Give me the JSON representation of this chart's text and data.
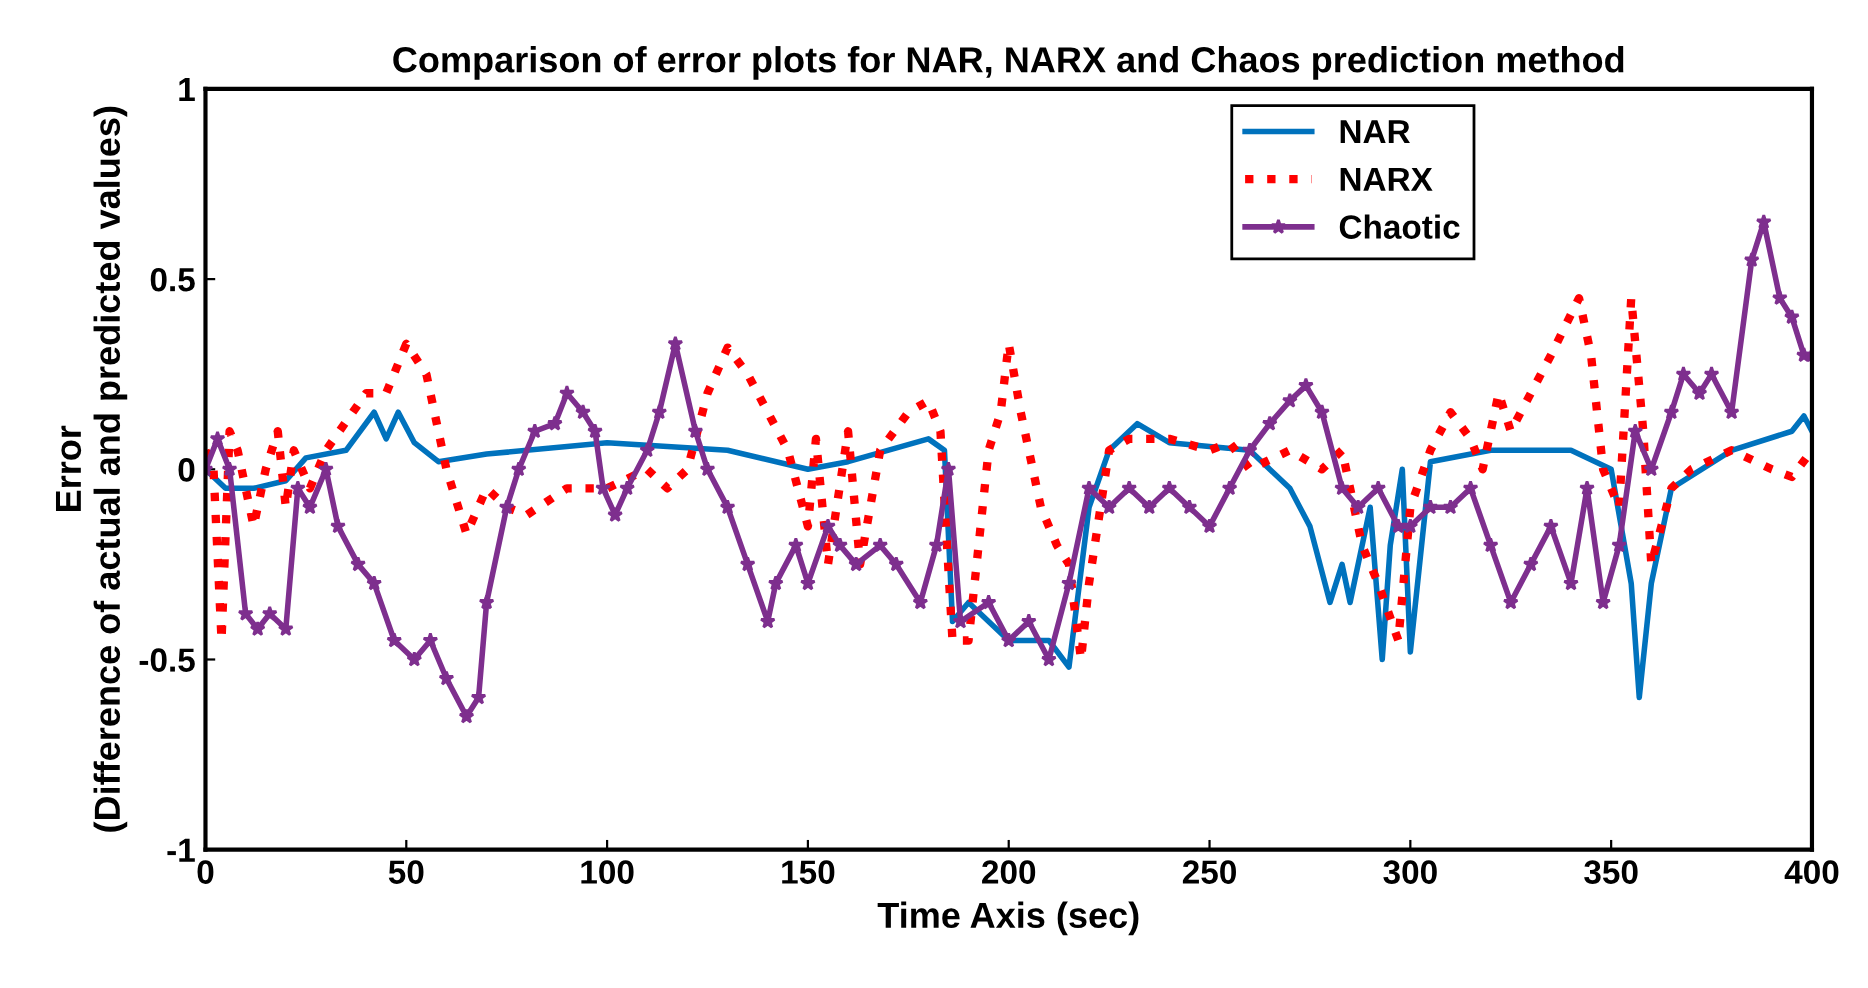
{
  "chart_data": {
    "type": "line",
    "title": "Comparison of error plots for NAR, NARX and Chaos prediction method",
    "xlabel": "Time Axis (sec)",
    "ylabel": "Error\n(Difference of actual and predicted values)",
    "xlim": [
      0,
      400
    ],
    "ylim": [
      -1,
      1
    ],
    "xticks": [
      0,
      50,
      100,
      150,
      200,
      250,
      300,
      350,
      400
    ],
    "yticks": [
      -1,
      -0.5,
      0,
      0.5,
      1
    ],
    "grid": false,
    "legend": "top right",
    "series": [
      {
        "name": "NAR",
        "color": "#0072bd",
        "line_style": "solid",
        "marker": "none",
        "x": [
          0,
          5,
          12,
          20,
          25,
          35,
          42,
          45,
          48,
          52,
          58,
          70,
          100,
          130,
          150,
          160,
          180,
          184,
          186,
          190,
          200,
          210,
          215,
          220,
          225,
          232,
          240,
          260,
          270,
          275,
          280,
          283,
          285,
          290,
          293,
          295,
          298,
          300,
          305,
          320,
          340,
          350,
          355,
          357,
          360,
          365,
          380,
          395,
          398,
          400
        ],
        "values": [
          0,
          -0.05,
          -0.05,
          -0.03,
          0.03,
          0.05,
          0.15,
          0.08,
          0.15,
          0.07,
          0.02,
          0.04,
          0.07,
          0.05,
          0.0,
          0.02,
          0.08,
          0.05,
          -0.4,
          -0.35,
          -0.45,
          -0.45,
          -0.52,
          -0.1,
          0.05,
          0.12,
          0.07,
          0.05,
          -0.05,
          -0.15,
          -0.35,
          -0.25,
          -0.35,
          -0.1,
          -0.5,
          -0.2,
          0.0,
          -0.48,
          0.02,
          0.05,
          0.05,
          0.0,
          -0.3,
          -0.6,
          -0.3,
          -0.05,
          0.05,
          0.1,
          0.14,
          0.1
        ]
      },
      {
        "name": "NARX",
        "color": "#ff0000",
        "line_style": "dotted",
        "marker": "none",
        "x": [
          0,
          2,
          4,
          6,
          8,
          12,
          15,
          18,
          20,
          22,
          26,
          30,
          40,
          45,
          50,
          55,
          60,
          65,
          70,
          75,
          80,
          90,
          100,
          110,
          115,
          120,
          125,
          130,
          135,
          140,
          145,
          150,
          152,
          155,
          160,
          163,
          168,
          175,
          180,
          183,
          186,
          190,
          195,
          198,
          200,
          203,
          208,
          212,
          215,
          218,
          220,
          225,
          230,
          240,
          250,
          255,
          260,
          270,
          278,
          283,
          288,
          292,
          297,
          300,
          305,
          310,
          315,
          318,
          322,
          325,
          330,
          335,
          342,
          345,
          348,
          352,
          355,
          358,
          360,
          365,
          370,
          380,
          390,
          395,
          400
        ],
        "values": [
          0.05,
          0,
          -0.45,
          0.1,
          0.05,
          -0.15,
          0.0,
          0.1,
          -0.1,
          0.05,
          -0.05,
          0.05,
          0.2,
          0.2,
          0.33,
          0.25,
          0.0,
          -0.17,
          -0.05,
          -0.1,
          -0.12,
          -0.05,
          -0.05,
          0.0,
          -0.05,
          0.0,
          0.2,
          0.32,
          0.25,
          0.15,
          0.05,
          -0.15,
          0.08,
          -0.25,
          0.1,
          -0.25,
          0.05,
          0.15,
          0.18,
          0.1,
          -0.45,
          -0.45,
          0.05,
          0.15,
          0.33,
          0.15,
          -0.1,
          -0.2,
          -0.25,
          -0.5,
          -0.3,
          0.05,
          0.08,
          0.08,
          0.05,
          0.07,
          0.0,
          0.05,
          0.0,
          0.05,
          -0.2,
          -0.3,
          -0.45,
          -0.1,
          0.05,
          0.15,
          0.08,
          0.0,
          0.2,
          0.1,
          0.2,
          0.3,
          0.45,
          0.3,
          0.0,
          -0.1,
          0.45,
          0.1,
          -0.25,
          -0.05,
          0.0,
          0.05,
          0.0,
          -0.02,
          0.05
        ]
      },
      {
        "name": "Chaotic",
        "color": "#7e2f8e",
        "line_style": "solid",
        "marker": "star",
        "x": [
          0,
          3,
          6,
          10,
          13,
          16,
          20,
          23,
          26,
          30,
          33,
          38,
          42,
          47,
          52,
          56,
          60,
          65,
          68,
          70,
          75,
          78,
          82,
          87,
          90,
          94,
          97,
          99,
          102,
          105,
          110,
          113,
          117,
          122,
          125,
          130,
          135,
          140,
          142,
          147,
          150,
          155,
          158,
          162,
          168,
          172,
          178,
          182,
          185,
          188,
          195,
          200,
          205,
          210,
          215,
          220,
          225,
          230,
          235,
          240,
          245,
          250,
          255,
          260,
          265,
          270,
          274,
          278,
          283,
          287,
          292,
          297,
          300,
          305,
          310,
          315,
          320,
          325,
          330,
          335,
          340,
          344,
          348,
          352,
          356,
          360,
          365,
          368,
          372,
          375,
          380,
          385,
          388,
          392,
          395,
          398,
          400
        ],
        "values": [
          0.0,
          0.08,
          0.0,
          -0.38,
          -0.42,
          -0.38,
          -0.42,
          -0.05,
          -0.1,
          0.0,
          -0.15,
          -0.25,
          -0.3,
          -0.45,
          -0.5,
          -0.45,
          -0.55,
          -0.65,
          -0.6,
          -0.35,
          -0.1,
          0.0,
          0.1,
          0.12,
          0.2,
          0.15,
          0.1,
          -0.05,
          -0.12,
          -0.05,
          0.05,
          0.15,
          0.33,
          0.1,
          0.0,
          -0.1,
          -0.25,
          -0.4,
          -0.3,
          -0.2,
          -0.3,
          -0.15,
          -0.2,
          -0.25,
          -0.2,
          -0.25,
          -0.35,
          -0.2,
          0.0,
          -0.4,
          -0.35,
          -0.45,
          -0.4,
          -0.5,
          -0.3,
          -0.05,
          -0.1,
          -0.05,
          -0.1,
          -0.05,
          -0.1,
          -0.15,
          -0.05,
          0.05,
          0.12,
          0.18,
          0.22,
          0.15,
          -0.05,
          -0.1,
          -0.05,
          -0.15,
          -0.15,
          -0.1,
          -0.1,
          -0.05,
          -0.2,
          -0.35,
          -0.25,
          -0.15,
          -0.3,
          -0.05,
          -0.35,
          -0.2,
          0.1,
          0.0,
          0.15,
          0.25,
          0.2,
          0.25,
          0.15,
          0.55,
          0.65,
          0.45,
          0.4,
          0.3,
          0.3
        ]
      }
    ]
  }
}
